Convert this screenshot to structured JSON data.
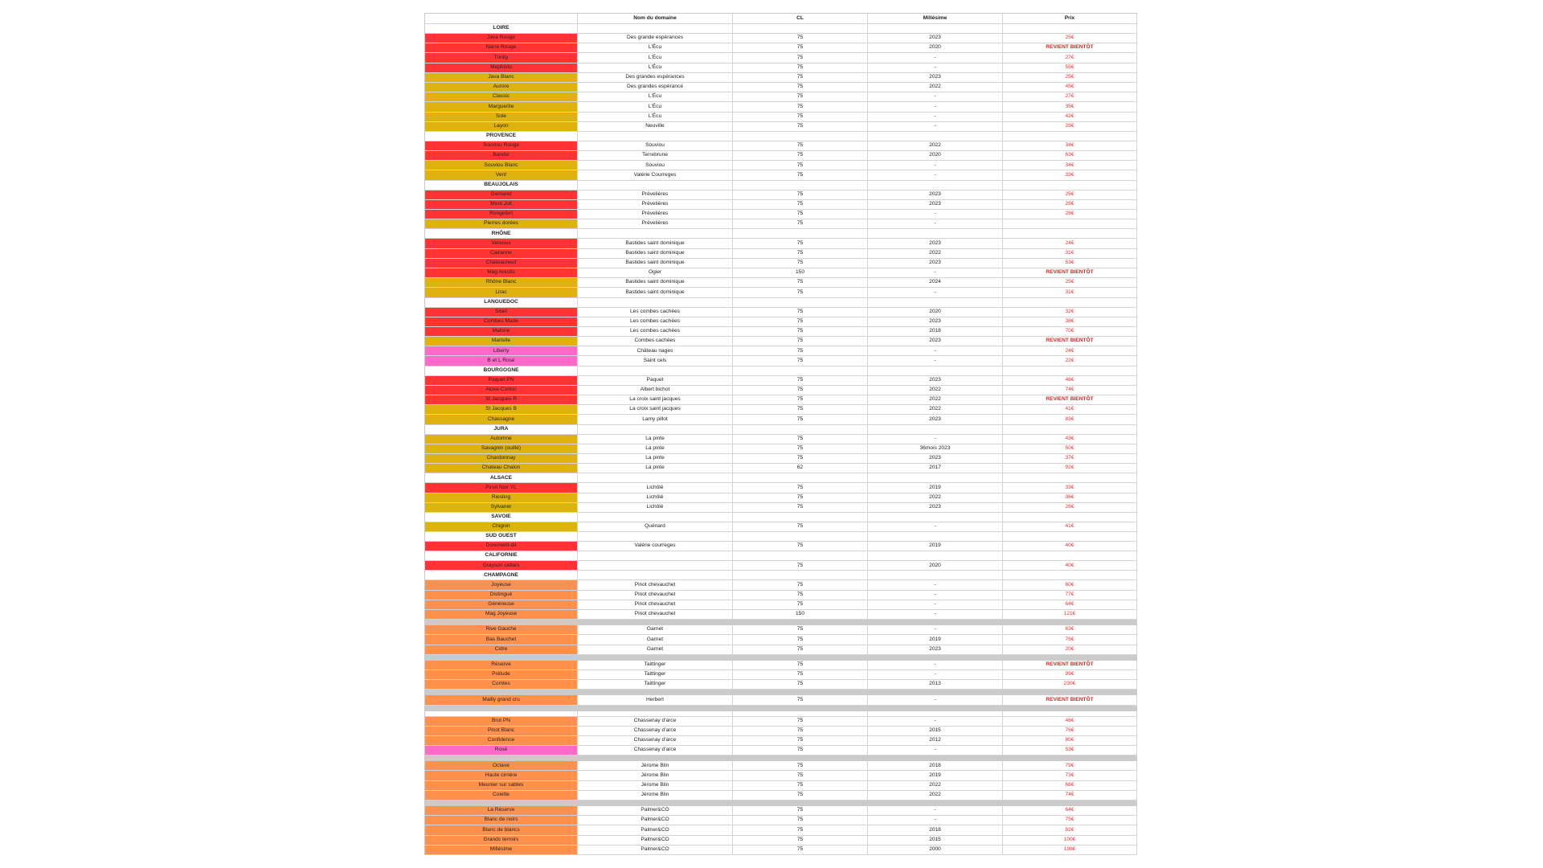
{
  "colors": {
    "rouge": "#ff3333",
    "blanc": "#deb20f",
    "rose": "#ff6ac8",
    "champagne": "#ff914d",
    "price": "#ff3030",
    "separator": "#cbcbcb"
  },
  "header": {
    "col_wine": "",
    "col_domain": "Nom du domaine",
    "col_cl": "CL",
    "col_vintage": "Millésime",
    "col_price": "Prix"
  },
  "rows": [
    {
      "type": "region",
      "name": "LOIRE"
    },
    {
      "type": "wine",
      "color": "rouge",
      "name": "Java Rouge",
      "domain": "Des grande espérances",
      "cl": "75",
      "vintage": "2023",
      "price": "25€"
    },
    {
      "type": "wine",
      "color": "rouge",
      "name": "Narre Rouge",
      "domain": "L'Écu",
      "cl": "75",
      "vintage": "2020",
      "price": "REVIENT BIENTÔT"
    },
    {
      "type": "wine",
      "color": "rouge",
      "name": "Trinity",
      "domain": "L'Écu",
      "cl": "75",
      "vintage": "-",
      "price": "27€"
    },
    {
      "type": "wine",
      "color": "rouge",
      "name": "Mephisto",
      "domain": "L'Écu",
      "cl": "75",
      "vintage": "-",
      "price": "55€"
    },
    {
      "type": "wine",
      "color": "blanc",
      "name": "Java Blanc",
      "domain": "Des grandes espérances",
      "cl": "75",
      "vintage": "2023",
      "price": "25€"
    },
    {
      "type": "wine",
      "color": "blanc",
      "name": "Aurore",
      "domain": "Des grandes espérancé",
      "cl": "75",
      "vintage": "2022",
      "price": "45€"
    },
    {
      "type": "wine",
      "color": "blanc",
      "name": "Classic",
      "domain": "L'Écu",
      "cl": "75",
      "vintage": "-",
      "price": "27€"
    },
    {
      "type": "wine",
      "color": "blanc",
      "name": "Marguerite",
      "domain": "L'Écu",
      "cl": "75",
      "vintage": "-",
      "price": "35€"
    },
    {
      "type": "wine",
      "color": "blanc",
      "name": "Sole",
      "domain": "L'Écu",
      "cl": "75",
      "vintage": "-",
      "price": "42€"
    },
    {
      "type": "wine",
      "color": "blanc",
      "name": "Layon",
      "domain": "Neuville",
      "cl": "75",
      "vintage": "-",
      "price": "28€"
    },
    {
      "type": "region",
      "name": "PROVENCE"
    },
    {
      "type": "wine",
      "color": "rouge",
      "name": "Souviou Rouge",
      "domain": "Souviou",
      "cl": "75",
      "vintage": "2022",
      "price": "34€"
    },
    {
      "type": "wine",
      "color": "rouge",
      "name": "Bandol",
      "domain": "Terrebrune",
      "cl": "75",
      "vintage": "2020",
      "price": "63€"
    },
    {
      "type": "wine",
      "color": "blanc",
      "name": "Souviou Blanc",
      "domain": "Souviou",
      "cl": "75",
      "vintage": "-",
      "price": "34€"
    },
    {
      "type": "wine",
      "color": "blanc",
      "name": "Vent",
      "domain": "Valérie Courreges",
      "cl": "75",
      "vintage": "-",
      "price": "33€"
    },
    {
      "type": "region",
      "name": "BEAUJOLAIS"
    },
    {
      "type": "wine",
      "color": "rouge",
      "name": "Gamaret",
      "domain": "Prévelières",
      "cl": "75",
      "vintage": "2023",
      "price": "25€"
    },
    {
      "type": "wine",
      "color": "rouge",
      "name": "Mont Joli",
      "domain": "Prévelières",
      "cl": "75",
      "vintage": "2023",
      "price": "28€"
    },
    {
      "type": "wine",
      "color": "rouge",
      "name": "Rongefert",
      "domain": "Prévelières",
      "cl": "75",
      "vintage": "-",
      "price": "28€"
    },
    {
      "type": "wine",
      "color": "blanc",
      "name": "Pierres dorées",
      "domain": "Prévelières",
      "cl": "75",
      "vintage": "-",
      "price": ""
    },
    {
      "type": "region",
      "name": "RHÔNE"
    },
    {
      "type": "wine",
      "color": "rouge",
      "name": "Vereoux",
      "domain": "Bastides saint dominique",
      "cl": "75",
      "vintage": "2023",
      "price": "24€"
    },
    {
      "type": "wine",
      "color": "rouge",
      "name": "Cairanne",
      "domain": "Bastides saint dominique",
      "cl": "75",
      "vintage": "2022",
      "price": "31€"
    },
    {
      "type": "wine",
      "color": "rouge",
      "name": "Chateauneuf",
      "domain": "Bastides saint dominique",
      "cl": "75",
      "vintage": "2023",
      "price": "53€"
    },
    {
      "type": "wine",
      "color": "rouge",
      "name": "Mag Arestis",
      "domain": "Ogier",
      "cl": "150",
      "vintage": "-",
      "price": "REVIENT BIENTÔT"
    },
    {
      "type": "wine",
      "color": "blanc",
      "name": "Rhône Blanc",
      "domain": "Bastides saint dominique",
      "cl": "75",
      "vintage": "2024",
      "price": "25€"
    },
    {
      "type": "wine",
      "color": "blanc",
      "name": "Lirac",
      "domain": "Bastides saint dominique",
      "cl": "75",
      "vintage": "-",
      "price": "31€"
    },
    {
      "type": "region",
      "name": "LANGUEDOC"
    },
    {
      "type": "wine",
      "color": "rouge",
      "name": "Sitari",
      "domain": "Les combes cachées",
      "cl": "75",
      "vintage": "2020",
      "price": "32€"
    },
    {
      "type": "wine",
      "color": "rouge",
      "name": "Combes Marie",
      "domain": "Les combes cachées",
      "cl": "75",
      "vintage": "2023",
      "price": "38€"
    },
    {
      "type": "wine",
      "color": "rouge",
      "name": "Malone",
      "domain": "Les combes cachées",
      "cl": "75",
      "vintage": "2018",
      "price": "70€"
    },
    {
      "type": "wine",
      "color": "blanc",
      "name": "Martelle",
      "domain": "Combes cachées",
      "cl": "75",
      "vintage": "2023",
      "price": "REVIENT BIENTÔT"
    },
    {
      "type": "wine",
      "color": "rose",
      "name": "Liberty",
      "domain": "Château nages",
      "cl": "75",
      "vintage": "-",
      "price": "24€"
    },
    {
      "type": "wine",
      "color": "rose",
      "name": "B et L Rosé",
      "domain": "Saint cels",
      "cl": "75",
      "vintage": "-",
      "price": "22€"
    },
    {
      "type": "region",
      "name": "BOURGOGNE"
    },
    {
      "type": "wine",
      "color": "rouge",
      "name": "Paquet PN",
      "domain": "Paquet",
      "cl": "75",
      "vintage": "2023",
      "price": "46€"
    },
    {
      "type": "wine",
      "color": "rouge",
      "name": "Aloxe-Corton",
      "domain": "Albert bichot",
      "cl": "75",
      "vintage": "2022",
      "price": "74€"
    },
    {
      "type": "wine",
      "color": "rouge",
      "name": "St Jacques R",
      "domain": "La croix saint jacques",
      "cl": "75",
      "vintage": "2022",
      "price": "REVIENT BIENTÔT"
    },
    {
      "type": "wine",
      "color": "blanc",
      "name": "St Jacques B",
      "domain": "La croix saint jacques",
      "cl": "75",
      "vintage": "2022",
      "price": "41€"
    },
    {
      "type": "wine",
      "color": "blanc",
      "name": "Chassagne",
      "domain": "Lamy pillot",
      "cl": "75",
      "vintage": "2023",
      "price": "83€"
    },
    {
      "type": "region",
      "name": "JURA"
    },
    {
      "type": "wine",
      "color": "blanc",
      "name": "Automne",
      "domain": "La pinte",
      "cl": "75",
      "vintage": "-",
      "price": "43€"
    },
    {
      "type": "wine",
      "color": "blanc",
      "name": "Savagnin (ouillé)",
      "domain": "La pinte",
      "cl": "75",
      "vintage": "36mois 2023",
      "price": "50€"
    },
    {
      "type": "wine",
      "color": "blanc",
      "name": "Chardonnay",
      "domain": "La pinte",
      "cl": "75",
      "vintage": "2023",
      "price": "37€"
    },
    {
      "type": "wine",
      "color": "blanc",
      "name": "Chateau Chalon",
      "domain": "La pinte",
      "cl": "62",
      "vintage": "2017",
      "price": "92€"
    },
    {
      "type": "region",
      "name": "ALSACE"
    },
    {
      "type": "wine",
      "color": "rouge",
      "name": "Pinot Noir YL",
      "domain": "Lichôlé",
      "cl": "75",
      "vintage": "2019",
      "price": "33€"
    },
    {
      "type": "wine",
      "color": "blanc",
      "name": "Riesling",
      "domain": "Lichôlé",
      "cl": "75",
      "vintage": "2022",
      "price": "36€"
    },
    {
      "type": "wine",
      "color": "blanc",
      "name": "Sylvaner",
      "domain": "Lichôlé",
      "cl": "75",
      "vintage": "2023",
      "price": "26€"
    },
    {
      "type": "region",
      "name": "SAVOIE"
    },
    {
      "type": "wine",
      "color": "blanc",
      "name": "Chignin",
      "domain": "Quénard",
      "cl": "75",
      "vintage": "-",
      "price": "41€"
    },
    {
      "type": "region",
      "name": "SUD OUEST"
    },
    {
      "type": "wine",
      "color": "rouge",
      "name": "Dorement-dit",
      "domain": "Valérie courreges",
      "cl": "75",
      "vintage": "2019",
      "price": "40€"
    },
    {
      "type": "region",
      "name": "CALIFORNIE"
    },
    {
      "type": "wine",
      "color": "rouge",
      "name": "Grayson cellars",
      "domain": "",
      "cl": "75",
      "vintage": "2020",
      "price": "40€"
    },
    {
      "type": "region",
      "name": "CHAMPAGNE"
    },
    {
      "type": "wine",
      "color": "champagne",
      "name": "Joyeuse",
      "domain": "Pinot chevauchet",
      "cl": "75",
      "vintage": "-",
      "price": "60€"
    },
    {
      "type": "wine",
      "color": "champagne",
      "name": "Distingué",
      "domain": "Pinot chevauchet",
      "cl": "75",
      "vintage": "-",
      "price": "77€"
    },
    {
      "type": "wine",
      "color": "champagne",
      "name": "Généreuse",
      "domain": "Pinot chevauchet",
      "cl": "75",
      "vintage": "-",
      "price": "64€"
    },
    {
      "type": "wine",
      "color": "champagne",
      "name": "Mag Joyeuse",
      "domain": "Pinot chevauchet",
      "cl": "150",
      "vintage": "-",
      "price": "121€"
    },
    {
      "type": "sep"
    },
    {
      "type": "wine",
      "color": "champagne",
      "name": "Rive Gauche",
      "domain": "Garnet",
      "cl": "75",
      "vintage": "-",
      "price": "63€"
    },
    {
      "type": "wine",
      "color": "champagne",
      "name": "Bas Bauchet",
      "domain": "Garnet",
      "cl": "75",
      "vintage": "2019",
      "price": "76€"
    },
    {
      "type": "wine",
      "color": "champagne",
      "name": "Cidre",
      "domain": "Garnet",
      "cl": "75",
      "vintage": "2023",
      "price": "20€"
    },
    {
      "type": "sep"
    },
    {
      "type": "wine",
      "color": "champagne",
      "name": "Réserve",
      "domain": "Taittinger",
      "cl": "75",
      "vintage": "-",
      "price": "REVIENT BIENTÔT"
    },
    {
      "type": "wine",
      "color": "champagne",
      "name": "Prélude",
      "domain": "Taittinger",
      "cl": "75",
      "vintage": "-",
      "price": "99€"
    },
    {
      "type": "wine",
      "color": "champagne",
      "name": "Comtes",
      "domain": "Taittinger",
      "cl": "75",
      "vintage": "2013",
      "price": "230€"
    },
    {
      "type": "sep"
    },
    {
      "type": "wine",
      "color": "champagne",
      "name": "Mailly grand cru",
      "domain": "Herbert",
      "cl": "75",
      "vintage": "-",
      "price": "REVIENT BIENTÔT"
    },
    {
      "type": "sep"
    },
    {
      "type": "gap"
    },
    {
      "type": "wine",
      "color": "champagne",
      "name": "Brut PN",
      "domain": "Chassenay d'arce",
      "cl": "75",
      "vintage": "-",
      "price": "46€"
    },
    {
      "type": "wine",
      "color": "champagne",
      "name": "Pinot Blanc",
      "domain": "Chassenay d'arce",
      "cl": "75",
      "vintage": "2015",
      "price": "76€"
    },
    {
      "type": "wine",
      "color": "champagne",
      "name": "Confidence",
      "domain": "Chassenay d'arce",
      "cl": "75",
      "vintage": "2012",
      "price": "80€"
    },
    {
      "type": "wine",
      "color": "rose",
      "name": "Rosé",
      "domain": "Chassenay d'arce",
      "cl": "75",
      "vintage": "-",
      "price": "53€"
    },
    {
      "type": "sep"
    },
    {
      "type": "wine",
      "color": "champagne",
      "name": "Octave",
      "domain": "Jérome Blin",
      "cl": "75",
      "vintage": "2018",
      "price": "79€"
    },
    {
      "type": "wine",
      "color": "champagne",
      "name": "Haute cirrière",
      "domain": "Jérome Blin",
      "cl": "75",
      "vintage": "2019",
      "price": "73€"
    },
    {
      "type": "wine",
      "color": "champagne",
      "name": "Meunier sur sables",
      "domain": "Jérome Blin",
      "cl": "75",
      "vintage": "2022",
      "price": "68€"
    },
    {
      "type": "wine",
      "color": "champagne",
      "name": "Colette",
      "domain": "Jérome Blin",
      "cl": "75",
      "vintage": "2022",
      "price": "74€"
    },
    {
      "type": "sep"
    },
    {
      "type": "wine",
      "color": "champagne",
      "name": "La Réserve",
      "domain": "Palmer&CO",
      "cl": "75",
      "vintage": "-",
      "price": "64€"
    },
    {
      "type": "wine",
      "color": "champagne",
      "name": "Blanc de noirs",
      "domain": "Palmer&CO",
      "cl": "75",
      "vintage": "-",
      "price": "75€"
    },
    {
      "type": "wine",
      "color": "champagne",
      "name": "Blanc de blancs",
      "domain": "Palmer&CO",
      "cl": "75",
      "vintage": "2018",
      "price": "82€"
    },
    {
      "type": "wine",
      "color": "champagne",
      "name": "Grands terroirs",
      "domain": "Palmer&CO",
      "cl": "75",
      "vintage": "2015",
      "price": "100€"
    },
    {
      "type": "wine",
      "color": "champagne",
      "name": "Millésime",
      "domain": "Palmer&CO",
      "cl": "75",
      "vintage": "2000",
      "price": "198€"
    }
  ]
}
